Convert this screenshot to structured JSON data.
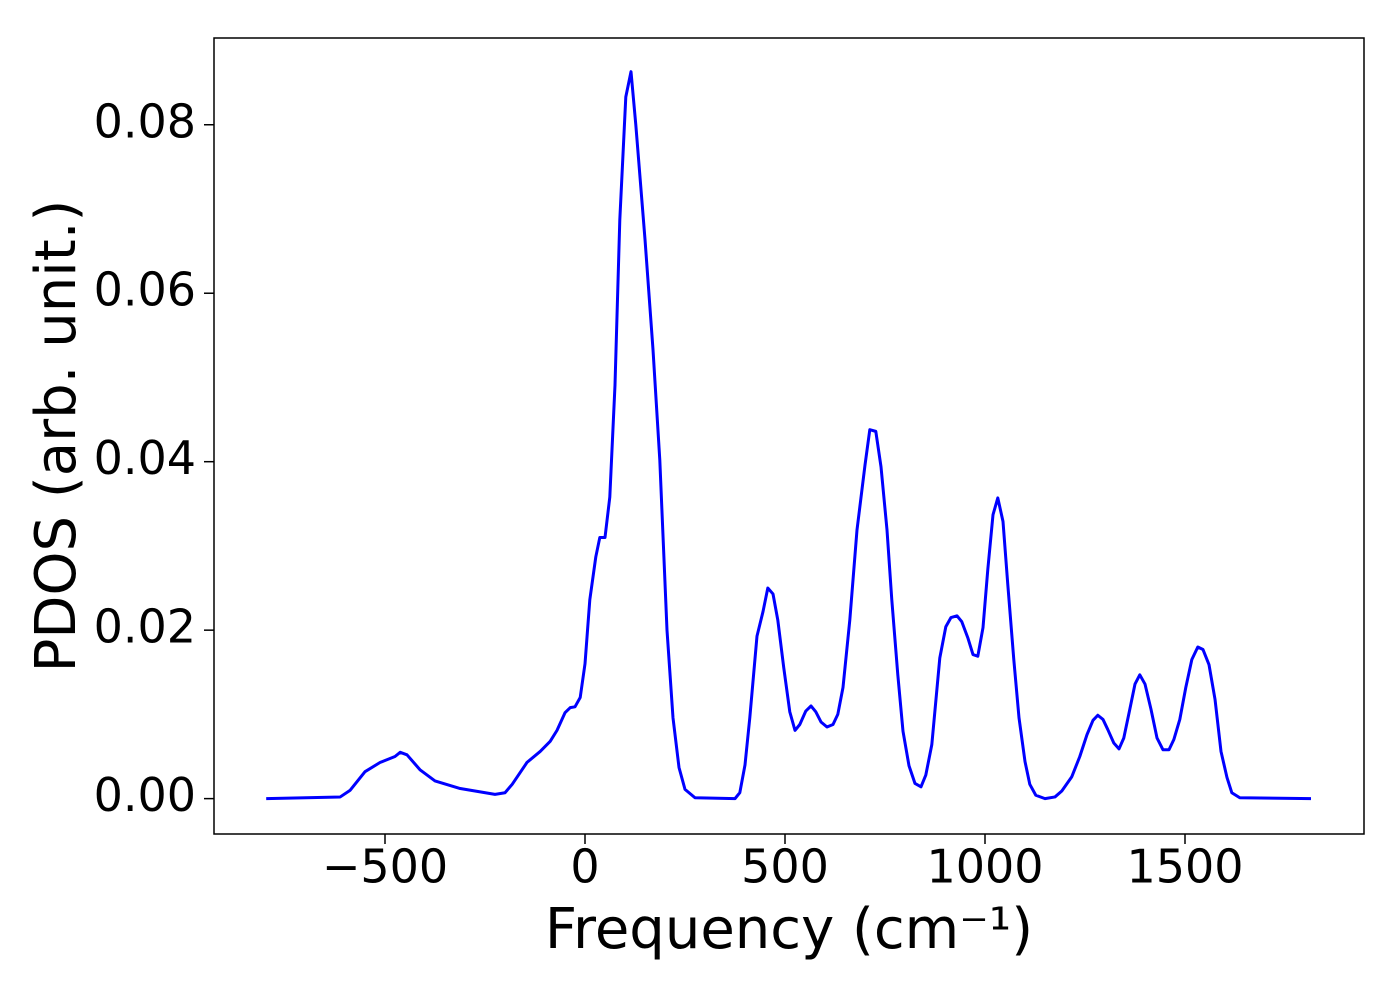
{
  "chart_data": {
    "type": "line",
    "xlabel": "Frequency (cm⁻¹)",
    "ylabel": "PDOS (arb. unit.)",
    "xlim": [
      -927.5,
      1947.5
    ],
    "ylim": [
      -0.0042,
      0.0903
    ],
    "xticks": [
      {
        "value": -500,
        "label": "−500"
      },
      0,
      500,
      1000,
      1500
    ],
    "yticks": [
      {
        "value": 0,
        "label": "0.00"
      },
      {
        "value": 0.02,
        "label": "0.02"
      },
      {
        "value": 0.04,
        "label": "0.04"
      },
      {
        "value": 0.06,
        "label": "0.06"
      },
      {
        "value": 0.08,
        "label": "0.08"
      }
    ],
    "grid": false,
    "series": [
      {
        "name": "PDOS",
        "color": "#0000ff",
        "x": [
          -797,
          -612,
          -587,
          -550,
          -512,
          -475,
          -462,
          -445,
          -412,
          -375,
          -312,
          -225,
          -200,
          -182,
          -145,
          -112,
          -87,
          -70,
          -50,
          -37,
          -25,
          -12,
          0,
          12,
          27,
          37,
          50,
          62,
          75,
          87,
          102,
          115,
          127,
          150,
          170,
          187,
          205,
          220,
          235,
          250,
          275,
          375,
          387,
          400,
          412,
          430,
          445,
          457,
          470,
          482,
          497,
          512,
          525,
          537,
          552,
          565,
          577,
          590,
          605,
          620,
          632,
          645,
          662,
          680,
          700,
          712,
          727,
          740,
          755,
          767,
          782,
          795,
          810,
          825,
          840,
          852,
          867,
          887,
          902,
          915,
          930,
          942,
          957,
          970,
          982,
          995,
          1007,
          1020,
          1032,
          1045,
          1057,
          1072,
          1085,
          1100,
          1112,
          1127,
          1150,
          1175,
          1192,
          1217,
          1237,
          1255,
          1270,
          1282,
          1295,
          1307,
          1322,
          1335,
          1347,
          1362,
          1375,
          1387,
          1400,
          1415,
          1430,
          1445,
          1460,
          1472,
          1487,
          1502,
          1517,
          1532,
          1545,
          1560,
          1575,
          1590,
          1605,
          1617,
          1637,
          1815
        ],
        "values": [
          0,
          0.0002,
          0.001,
          0.0032,
          0.0043,
          0.005,
          0.0055,
          0.0052,
          0.0034,
          0.0021,
          0.0012,
          0.0005,
          0.0007,
          0.0017,
          0.0043,
          0.0056,
          0.0068,
          0.0081,
          0.0102,
          0.0108,
          0.0109,
          0.012,
          0.016,
          0.0236,
          0.0287,
          0.031,
          0.031,
          0.0358,
          0.0491,
          0.0687,
          0.0833,
          0.0863,
          0.08,
          0.0664,
          0.0533,
          0.0402,
          0.02,
          0.0096,
          0.0037,
          0.0011,
          0.0001,
          0,
          0.0007,
          0.004,
          0.0096,
          0.0193,
          0.0222,
          0.025,
          0.0243,
          0.0212,
          0.0155,
          0.0103,
          0.0081,
          0.0088,
          0.0104,
          0.011,
          0.0103,
          0.0091,
          0.0085,
          0.0088,
          0.01,
          0.0132,
          0.0212,
          0.0319,
          0.0396,
          0.0438,
          0.0436,
          0.0394,
          0.0319,
          0.0236,
          0.0147,
          0.008,
          0.0039,
          0.0018,
          0.0014,
          0.0028,
          0.0064,
          0.0167,
          0.0204,
          0.0215,
          0.0217,
          0.021,
          0.0191,
          0.0171,
          0.0169,
          0.0203,
          0.0272,
          0.0337,
          0.0357,
          0.0329,
          0.0254,
          0.0165,
          0.0096,
          0.0044,
          0.0017,
          0.0004,
          0,
          0.0002,
          0.0009,
          0.0026,
          0.005,
          0.0076,
          0.0093,
          0.0099,
          0.0094,
          0.0082,
          0.0066,
          0.0059,
          0.0072,
          0.0106,
          0.0136,
          0.0147,
          0.0136,
          0.0106,
          0.0072,
          0.0058,
          0.0058,
          0.007,
          0.0094,
          0.0132,
          0.0165,
          0.018,
          0.0177,
          0.0159,
          0.0118,
          0.0056,
          0.0025,
          0.0007,
          0.0001,
          0
        ]
      }
    ]
  }
}
